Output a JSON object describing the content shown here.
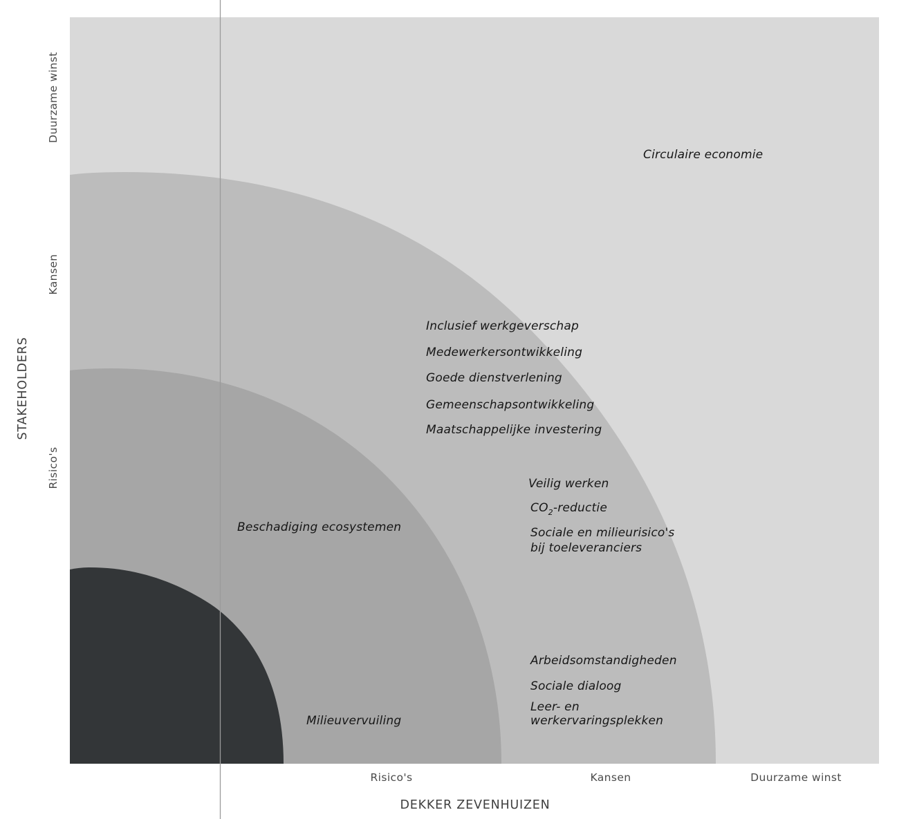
{
  "colors": {
    "outer": "#d9d9d9",
    "middle": "#bcbcbc",
    "inner": "#a6a6a6",
    "core": "#333638",
    "divider": "#9a9a9a"
  },
  "x_axis": {
    "title": "DEKKER ZEVENHUIZEN",
    "ticks": [
      "Risico's",
      "Kansen",
      "Duurzame winst"
    ]
  },
  "y_axis": {
    "title": "STAKEHOLDERS",
    "ticks": [
      "Risico's",
      "Kansen",
      "Duurzame winst"
    ]
  },
  "zones": {
    "duurzame_winst": [
      "Circulaire economie"
    ],
    "kansen_upper": [
      "Inclusief werkgeverschap",
      "Medewerkersontwikkeling",
      "Goede dienstverlening",
      "Gemeenschapsontwikkeling",
      "Maatschappelijke investering"
    ],
    "kansen_middle": {
      "veilig": "Veilig werken",
      "co2_prefix": "CO",
      "co2_sub": "2",
      "co2_suffix": "-reductie",
      "sociale_line1": "Sociale en milieurisico's",
      "sociale_line2": "bij toeleveranciers"
    },
    "kansen_lower": {
      "arbeid": "Arbeidsomstandigheden",
      "dialoog": "Sociale dialoog",
      "leer_line1": "Leer- en",
      "leer_line2": "werkervaringsplekken"
    },
    "risicos": {
      "ecosystemen": "Beschadiging ecosystemen",
      "milieu": "Milieuvervuiling"
    }
  }
}
